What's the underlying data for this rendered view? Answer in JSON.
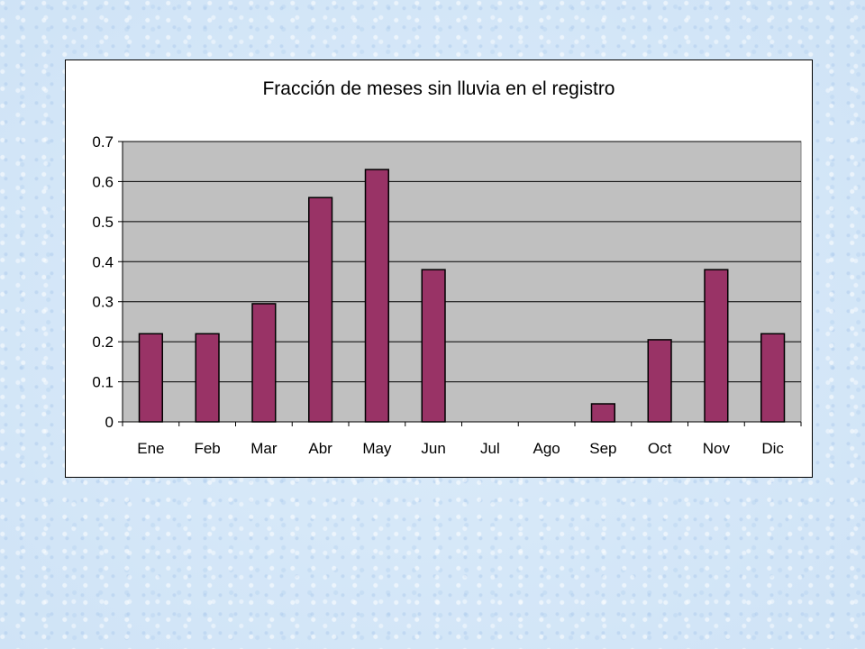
{
  "chart_data": {
    "type": "bar",
    "title": "Fracción de meses sin lluvia en el registro",
    "xlabel": "",
    "ylabel": "",
    "categories": [
      "Ene",
      "Feb",
      "Mar",
      "Abr",
      "May",
      "Jun",
      "Jul",
      "Ago",
      "Sep",
      "Oct",
      "Nov",
      "Dic"
    ],
    "values": [
      0.22,
      0.22,
      0.295,
      0.56,
      0.63,
      0.38,
      0,
      0,
      0.045,
      0.205,
      0.38,
      0.22
    ],
    "ylim": [
      0,
      0.7
    ],
    "yticks": [
      "0",
      "0.1",
      "0.2",
      "0.3",
      "0.4",
      "0.5",
      "0.6",
      "0.7"
    ],
    "grid": true,
    "colors": {
      "bar": "#993366",
      "plot_area": "#c0c0c0",
      "gridline": "#000000"
    }
  }
}
